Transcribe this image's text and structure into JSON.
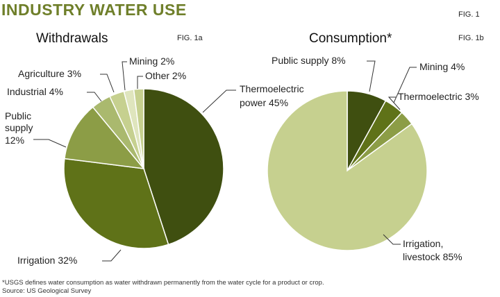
{
  "title": "INDUSTRY WATER USE",
  "figure_label": "FIG. 1",
  "colors": {
    "title": "#6f7f2a",
    "dark_olive": "#3f4f10",
    "olive": "#5f7218",
    "medium_olive": "#8c9d46",
    "light_olive": "#aab96e",
    "pale_olive": "#c6d08f",
    "lightest": "#dfe5bd"
  },
  "chart_data": [
    {
      "type": "pie",
      "title": "Withdrawals",
      "figure_label": "FIG. 1a",
      "slices": [
        {
          "label": "Thermoelectric power",
          "value": 45,
          "label_text": "Thermoelectric power 45%",
          "color": "#3f4f10"
        },
        {
          "label": "Irrigation",
          "value": 32,
          "label_text": "Irrigation 32%",
          "color": "#5f7218"
        },
        {
          "label": "Public supply",
          "value": 12,
          "label_text": "Public supply 12%",
          "color": "#8c9d46"
        },
        {
          "label": "Industrial",
          "value": 4,
          "label_text": "Industrial 4%",
          "color": "#aab96e"
        },
        {
          "label": "Agriculture",
          "value": 3,
          "label_text": "Agriculture 3%",
          "color": "#c6d08f"
        },
        {
          "label": "Mining",
          "value": 2,
          "label_text": "Mining 2%",
          "color": "#dfe5bd"
        },
        {
          "label": "Other",
          "value": 2,
          "label_text": "Other 2%",
          "color": "#c6d08f"
        }
      ]
    },
    {
      "type": "pie",
      "title": "Consumption*",
      "figure_label": "FIG. 1b",
      "slices": [
        {
          "label": "Public supply",
          "value": 8,
          "label_text": "Public supply 8%",
          "color": "#3f4f10"
        },
        {
          "label": "Mining",
          "value": 4,
          "label_text": "Mining 4%",
          "color": "#5f7218"
        },
        {
          "label": "Thermoelectric",
          "value": 3,
          "label_text": "Thermoelectric 3%",
          "color": "#8c9d46"
        },
        {
          "label": "Irrigation, livestock",
          "value": 85,
          "label_text": "Irrigation, livestock 85%",
          "color": "#c6d08f"
        }
      ]
    }
  ],
  "footnote": "*USGS defines water consumption as water withdrawn permanently from the water cycle for a product or crop.",
  "source": "Source: US Geological Survey"
}
